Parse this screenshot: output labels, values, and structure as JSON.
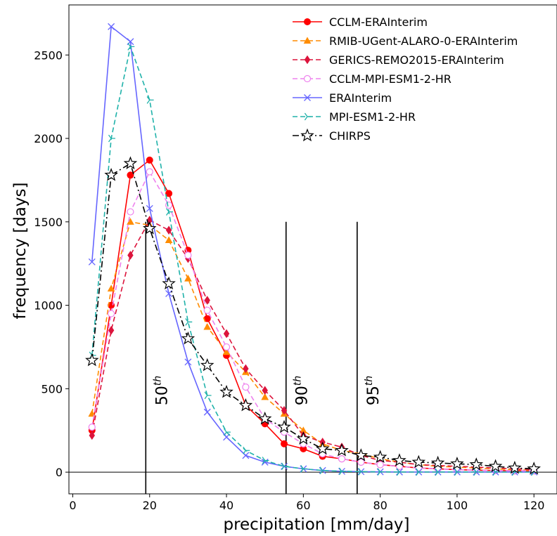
{
  "chart_data": {
    "type": "line",
    "xlabel": "precipitation [mm/day]",
    "ylabel": "frequency [days]",
    "xlim": [
      -1,
      126
    ],
    "ylim": [
      -130,
      2800
    ],
    "xticks": [
      0,
      20,
      40,
      60,
      80,
      100,
      120
    ],
    "yticks": [
      0,
      500,
      1000,
      1500,
      2000,
      2500
    ],
    "x": [
      5,
      10,
      15,
      20,
      25,
      30,
      35,
      40,
      45,
      50,
      55,
      60,
      65,
      70,
      75,
      80,
      85,
      90,
      95,
      100,
      105,
      110,
      115,
      120
    ],
    "series": [
      {
        "name": "CCLM-ERAInterim",
        "color": "#ff0000",
        "marker": "circle",
        "dash": "solid",
        "values": [
          250,
          1000,
          1780,
          1870,
          1670,
          1330,
          920,
          700,
          400,
          290,
          170,
          140,
          95,
          80,
          60,
          45,
          35,
          25,
          20,
          15,
          12,
          10,
          8,
          8
        ]
      },
      {
        "name": "RMIB-UGent-ALARO-0-ERAInterim",
        "color": "#ff8c00",
        "marker": "triangle",
        "dash": "dashed",
        "values": [
          350,
          1100,
          1500,
          1480,
          1390,
          1160,
          870,
          720,
          600,
          450,
          350,
          250,
          170,
          130,
          110,
          80,
          60,
          45,
          35,
          30,
          25,
          20,
          15,
          10
        ]
      },
      {
        "name": "GERICS-REMO2015-ERAInterim",
        "color": "#dc143c",
        "marker": "diamond",
        "dash": "dashed",
        "values": [
          220,
          850,
          1300,
          1510,
          1450,
          1280,
          1030,
          830,
          620,
          490,
          370,
          220,
          180,
          150,
          100,
          70,
          60,
          45,
          40,
          35,
          30,
          25,
          20,
          15
        ]
      },
      {
        "name": "CCLM-MPI-ESM1-2-HR",
        "color": "#ee82ee",
        "marker": "open-circle",
        "dash": "dashed",
        "values": [
          270,
          950,
          1560,
          1800,
          1600,
          1300,
          970,
          750,
          510,
          320,
          240,
          170,
          110,
          80,
          60,
          45,
          35,
          25,
          20,
          15,
          12,
          10,
          8,
          8
        ]
      },
      {
        "name": "ERAInterim",
        "color": "#6666ff",
        "marker": "x",
        "dash": "solid",
        "values": [
          1260,
          2670,
          2580,
          1580,
          1070,
          660,
          360,
          210,
          100,
          60,
          35,
          20,
          10,
          5,
          3,
          2,
          1,
          1,
          1,
          1,
          1,
          1,
          1,
          1
        ]
      },
      {
        "name": "MPI-ESM1-2-HR",
        "color": "#20b2aa",
        "marker": "tri",
        "dash": "dashed",
        "values": [
          700,
          2000,
          2550,
          2230,
          1560,
          900,
          460,
          240,
          130,
          70,
          35,
          20,
          10,
          5,
          3,
          2,
          1,
          1,
          1,
          1,
          1,
          1,
          1,
          1
        ]
      },
      {
        "name": "CHIRPS",
        "color": "#000000",
        "marker": "star",
        "dash": "dashdot",
        "values": [
          670,
          1780,
          1850,
          1460,
          1130,
          800,
          640,
          480,
          400,
          320,
          270,
          200,
          140,
          130,
          100,
          90,
          70,
          60,
          55,
          50,
          45,
          35,
          25,
          20
        ]
      }
    ],
    "percentiles": [
      {
        "label": "50",
        "sup": "th",
        "x": 19,
        "top": 1500
      },
      {
        "label": "90",
        "sup": "th",
        "x": 55.5,
        "top": 1500
      },
      {
        "label": "95",
        "sup": "th",
        "x": 74,
        "top": 1500
      }
    ],
    "zero_line": true,
    "grid": false,
    "legend_position": "top-right"
  }
}
